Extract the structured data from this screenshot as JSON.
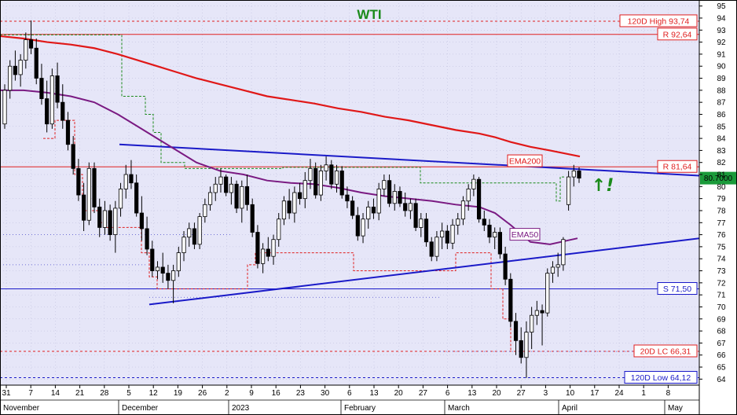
{
  "chart_data": {
    "type": "candlestick",
    "title": "WTI",
    "ylim": [
      63.5,
      95.5
    ],
    "y_ticks": [
      64,
      65,
      66,
      67,
      68,
      69,
      70,
      71,
      72,
      73,
      74,
      75,
      76,
      77,
      78,
      79,
      80,
      81,
      82,
      83,
      84,
      85,
      86,
      87,
      88,
      89,
      90,
      91,
      92,
      93,
      94,
      95
    ],
    "x_day_labels": [
      "31",
      "7",
      "14",
      "21",
      "28",
      "5",
      "12",
      "19",
      "26",
      "2",
      "9",
      "16",
      "23",
      "30",
      "6",
      "13",
      "20",
      "27",
      "6",
      "13",
      "20",
      "27",
      "3",
      "10",
      "17",
      "24",
      "1",
      "8"
    ],
    "x_month_labels": [
      "November",
      "December",
      "2023",
      "February",
      "March",
      "April",
      "May"
    ],
    "last_price": "80.7000",
    "annotation": "↑!",
    "candles": [
      {
        "o": 85.2,
        "h": 88.5,
        "l": 84.8,
        "c": 88.0
      },
      {
        "o": 88.0,
        "h": 90.5,
        "l": 87.3,
        "c": 90.0
      },
      {
        "o": 90.0,
        "h": 91.3,
        "l": 88.8,
        "c": 89.3
      },
      {
        "o": 89.3,
        "h": 91.0,
        "l": 88.3,
        "c": 90.5
      },
      {
        "o": 90.5,
        "h": 92.8,
        "l": 89.8,
        "c": 92.2
      },
      {
        "o": 92.2,
        "h": 93.8,
        "l": 91.0,
        "c": 91.5
      },
      {
        "o": 91.5,
        "h": 92.3,
        "l": 88.5,
        "c": 89.0
      },
      {
        "o": 89.0,
        "h": 90.2,
        "l": 86.8,
        "c": 87.3
      },
      {
        "o": 87.3,
        "h": 88.8,
        "l": 84.5,
        "c": 85.2
      },
      {
        "o": 85.2,
        "h": 89.8,
        "l": 84.8,
        "c": 89.2
      },
      {
        "o": 89.2,
        "h": 90.3,
        "l": 86.5,
        "c": 87.0
      },
      {
        "o": 87.0,
        "h": 88.5,
        "l": 84.8,
        "c": 85.5
      },
      {
        "o": 85.5,
        "h": 86.2,
        "l": 83.0,
        "c": 83.5
      },
      {
        "o": 83.5,
        "h": 84.2,
        "l": 81.0,
        "c": 81.5
      },
      {
        "o": 81.5,
        "h": 82.3,
        "l": 78.8,
        "c": 79.3
      },
      {
        "o": 79.3,
        "h": 80.3,
        "l": 76.3,
        "c": 77.2
      },
      {
        "o": 77.2,
        "h": 82.0,
        "l": 76.8,
        "c": 81.5
      },
      {
        "o": 81.5,
        "h": 82.0,
        "l": 77.8,
        "c": 78.3
      },
      {
        "o": 78.3,
        "h": 79.0,
        "l": 75.8,
        "c": 76.6
      },
      {
        "o": 76.6,
        "h": 78.8,
        "l": 76.0,
        "c": 78.0
      },
      {
        "o": 78.0,
        "h": 78.5,
        "l": 75.5,
        "c": 76.0
      },
      {
        "o": 76.0,
        "h": 78.8,
        "l": 74.5,
        "c": 78.2
      },
      {
        "o": 78.2,
        "h": 80.3,
        "l": 77.5,
        "c": 79.8
      },
      {
        "o": 79.8,
        "h": 81.8,
        "l": 79.0,
        "c": 81.0
      },
      {
        "o": 81.0,
        "h": 82.2,
        "l": 79.8,
        "c": 80.3
      },
      {
        "o": 80.3,
        "h": 81.0,
        "l": 77.5,
        "c": 77.8
      },
      {
        "o": 77.8,
        "h": 79.2,
        "l": 75.5,
        "c": 76.5
      },
      {
        "o": 76.5,
        "h": 77.5,
        "l": 74.3,
        "c": 74.8
      },
      {
        "o": 74.8,
        "h": 75.5,
        "l": 72.5,
        "c": 73.0
      },
      {
        "o": 73.0,
        "h": 73.8,
        "l": 72.3,
        "c": 73.3
      },
      {
        "o": 73.3,
        "h": 74.5,
        "l": 72.0,
        "c": 72.8
      },
      {
        "o": 72.8,
        "h": 73.5,
        "l": 71.5,
        "c": 72.2
      },
      {
        "o": 72.2,
        "h": 73.5,
        "l": 70.3,
        "c": 73.0
      },
      {
        "o": 73.0,
        "h": 75.0,
        "l": 72.5,
        "c": 74.5
      },
      {
        "o": 74.5,
        "h": 76.3,
        "l": 73.8,
        "c": 75.8
      },
      {
        "o": 75.8,
        "h": 77.0,
        "l": 75.0,
        "c": 76.5
      },
      {
        "o": 76.5,
        "h": 77.0,
        "l": 74.8,
        "c": 75.2
      },
      {
        "o": 75.2,
        "h": 77.8,
        "l": 74.8,
        "c": 77.5
      },
      {
        "o": 77.5,
        "h": 79.0,
        "l": 77.0,
        "c": 78.5
      },
      {
        "o": 78.5,
        "h": 80.0,
        "l": 78.0,
        "c": 79.5
      },
      {
        "o": 79.5,
        "h": 80.8,
        "l": 78.8,
        "c": 80.2
      },
      {
        "o": 80.2,
        "h": 81.5,
        "l": 79.5,
        "c": 80.8
      },
      {
        "o": 80.8,
        "h": 81.0,
        "l": 79.2,
        "c": 79.5
      },
      {
        "o": 79.5,
        "h": 80.8,
        "l": 78.5,
        "c": 80.2
      },
      {
        "o": 80.2,
        "h": 80.5,
        "l": 77.8,
        "c": 78.2
      },
      {
        "o": 78.2,
        "h": 80.5,
        "l": 77.0,
        "c": 80.0
      },
      {
        "o": 80.0,
        "h": 81.0,
        "l": 78.0,
        "c": 78.5
      },
      {
        "o": 78.5,
        "h": 79.0,
        "l": 75.8,
        "c": 76.2
      },
      {
        "o": 76.2,
        "h": 76.8,
        "l": 73.2,
        "c": 73.6
      },
      {
        "o": 73.6,
        "h": 75.3,
        "l": 72.8,
        "c": 74.8
      },
      {
        "o": 74.8,
        "h": 75.8,
        "l": 73.8,
        "c": 74.2
      },
      {
        "o": 74.2,
        "h": 76.0,
        "l": 73.5,
        "c": 75.6
      },
      {
        "o": 75.6,
        "h": 77.8,
        "l": 75.0,
        "c": 77.3
      },
      {
        "o": 77.3,
        "h": 79.2,
        "l": 76.8,
        "c": 78.8
      },
      {
        "o": 78.8,
        "h": 79.8,
        "l": 77.3,
        "c": 77.8
      },
      {
        "o": 77.8,
        "h": 80.0,
        "l": 77.0,
        "c": 79.5
      },
      {
        "o": 79.5,
        "h": 80.3,
        "l": 78.5,
        "c": 79.0
      },
      {
        "o": 79.0,
        "h": 81.2,
        "l": 78.2,
        "c": 80.5
      },
      {
        "o": 80.5,
        "h": 82.3,
        "l": 79.8,
        "c": 81.5
      },
      {
        "o": 81.5,
        "h": 82.0,
        "l": 79.0,
        "c": 79.3
      },
      {
        "o": 79.3,
        "h": 81.8,
        "l": 78.8,
        "c": 81.3
      },
      {
        "o": 81.3,
        "h": 82.5,
        "l": 80.5,
        "c": 81.8
      },
      {
        "o": 81.8,
        "h": 82.2,
        "l": 79.8,
        "c": 80.2
      },
      {
        "o": 80.2,
        "h": 81.8,
        "l": 79.5,
        "c": 81.3
      },
      {
        "o": 81.3,
        "h": 81.7,
        "l": 79.0,
        "c": 79.3
      },
      {
        "o": 79.3,
        "h": 80.0,
        "l": 78.2,
        "c": 78.8
      },
      {
        "o": 78.8,
        "h": 79.2,
        "l": 77.3,
        "c": 77.6
      },
      {
        "o": 77.6,
        "h": 78.3,
        "l": 75.5,
        "c": 75.9
      },
      {
        "o": 75.9,
        "h": 77.8,
        "l": 75.3,
        "c": 77.3
      },
      {
        "o": 77.3,
        "h": 78.8,
        "l": 76.5,
        "c": 78.3
      },
      {
        "o": 78.3,
        "h": 79.0,
        "l": 77.3,
        "c": 77.8
      },
      {
        "o": 77.8,
        "h": 80.3,
        "l": 77.2,
        "c": 79.8
      },
      {
        "o": 79.8,
        "h": 81.0,
        "l": 79.2,
        "c": 80.5
      },
      {
        "o": 80.5,
        "h": 81.0,
        "l": 78.3,
        "c": 78.6
      },
      {
        "o": 78.6,
        "h": 80.2,
        "l": 78.0,
        "c": 79.6
      },
      {
        "o": 79.6,
        "h": 80.0,
        "l": 78.3,
        "c": 78.6
      },
      {
        "o": 78.6,
        "h": 79.5,
        "l": 77.5,
        "c": 78.0
      },
      {
        "o": 78.0,
        "h": 79.0,
        "l": 77.3,
        "c": 78.6
      },
      {
        "o": 78.6,
        "h": 79.0,
        "l": 76.3,
        "c": 76.6
      },
      {
        "o": 76.6,
        "h": 77.8,
        "l": 75.8,
        "c": 77.3
      },
      {
        "o": 77.3,
        "h": 77.8,
        "l": 75.0,
        "c": 75.4
      },
      {
        "o": 75.4,
        "h": 75.8,
        "l": 73.8,
        "c": 74.2
      },
      {
        "o": 74.2,
        "h": 76.3,
        "l": 73.8,
        "c": 75.8
      },
      {
        "o": 75.8,
        "h": 77.0,
        "l": 74.8,
        "c": 76.3
      },
      {
        "o": 76.3,
        "h": 76.8,
        "l": 74.8,
        "c": 75.3
      },
      {
        "o": 75.3,
        "h": 77.3,
        "l": 74.8,
        "c": 76.8
      },
      {
        "o": 76.8,
        "h": 77.8,
        "l": 76.0,
        "c": 77.3
      },
      {
        "o": 77.3,
        "h": 79.2,
        "l": 76.8,
        "c": 78.8
      },
      {
        "o": 78.8,
        "h": 80.2,
        "l": 78.0,
        "c": 79.8
      },
      {
        "o": 79.8,
        "h": 81.0,
        "l": 79.2,
        "c": 80.6
      },
      {
        "o": 80.6,
        "h": 80.8,
        "l": 77.0,
        "c": 77.3
      },
      {
        "o": 77.3,
        "h": 78.0,
        "l": 76.3,
        "c": 76.8
      },
      {
        "o": 76.8,
        "h": 77.3,
        "l": 75.3,
        "c": 75.8
      },
      {
        "o": 75.8,
        "h": 76.6,
        "l": 74.8,
        "c": 76.2
      },
      {
        "o": 76.2,
        "h": 76.6,
        "l": 74.0,
        "c": 74.4
      },
      {
        "o": 74.4,
        "h": 75.0,
        "l": 71.8,
        "c": 72.3
      },
      {
        "o": 72.3,
        "h": 72.8,
        "l": 68.3,
        "c": 68.8
      },
      {
        "o": 68.8,
        "h": 69.5,
        "l": 66.0,
        "c": 67.2
      },
      {
        "o": 67.2,
        "h": 68.3,
        "l": 65.3,
        "c": 65.8
      },
      {
        "o": 65.8,
        "h": 68.8,
        "l": 64.1,
        "c": 67.9
      },
      {
        "o": 67.9,
        "h": 70.0,
        "l": 66.5,
        "c": 69.3
      },
      {
        "o": 69.3,
        "h": 70.5,
        "l": 68.5,
        "c": 69.7
      },
      {
        "o": 69.7,
        "h": 70.2,
        "l": 66.8,
        "c": 69.5
      },
      {
        "o": 69.5,
        "h": 73.2,
        "l": 69.2,
        "c": 72.8
      },
      {
        "o": 72.8,
        "h": 73.8,
        "l": 72.0,
        "c": 73.3
      },
      {
        "o": 73.3,
        "h": 74.5,
        "l": 72.5,
        "c": 73.5
      },
      {
        "o": 73.5,
        "h": 75.8,
        "l": 73.0,
        "c": 75.6
      },
      {
        "o": 78.5,
        "h": 81.3,
        "l": 78.0,
        "c": 80.8
      },
      {
        "o": 80.8,
        "h": 81.8,
        "l": 80.0,
        "c": 81.3
      },
      {
        "o": 81.3,
        "h": 81.6,
        "l": 80.3,
        "c": 80.7
      }
    ],
    "series": [
      {
        "name": "EMA200",
        "label": "EMA200",
        "values": [
          92.5,
          92.3,
          92.0,
          91.8,
          91.5,
          91.0,
          90.5,
          90.0,
          89.5,
          89.0,
          88.5,
          88.0,
          87.5,
          87.2,
          86.9,
          86.5,
          86.2,
          85.8,
          85.5,
          85.1,
          84.7,
          84.4,
          84.1,
          83.7,
          83.3,
          83.0,
          82.5
        ]
      },
      {
        "name": "EMA50",
        "label": "EMA50",
        "values": [
          88.0,
          88.0,
          87.8,
          87.5,
          87.0,
          86.0,
          85.0,
          84.0,
          83.0,
          82.0,
          81.3,
          81.0,
          80.5,
          80.3,
          80.2,
          79.9,
          79.5,
          79.2,
          79.0,
          78.8,
          78.5,
          78.3,
          77.8,
          76.8,
          75.4,
          75.2,
          75.7
        ]
      }
    ],
    "trendlines": [
      {
        "name": "upper-trendline",
        "points": [
          [
            "Nov 28",
            83.5
          ],
          [
            "Apr 11",
            81.0
          ]
        ]
      },
      {
        "name": "lower-trendline",
        "points": [
          [
            "Dec 5",
            70.2
          ],
          [
            "May 8",
            75.7
          ]
        ]
      }
    ],
    "levels": [
      {
        "name": "120D High",
        "value": 93.74,
        "label": "120D High 93,74",
        "style": "dashed",
        "color": "#e02020"
      },
      {
        "name": "R",
        "value": 92.64,
        "label": "R 92,64",
        "style": "solid",
        "color": "#e02020"
      },
      {
        "name": "R",
        "value": 81.64,
        "label": "R 81,64",
        "style": "solid",
        "color": "#e02020"
      },
      {
        "name": "S",
        "value": 71.5,
        "label": "S 71,50",
        "style": "solid",
        "color": "#1a1ac8"
      },
      {
        "name": "20D LC",
        "value": 66.31,
        "label": "20D LC 66,31",
        "style": "dashed",
        "color": "#e02020"
      },
      {
        "name": "120D Low",
        "value": 64.12,
        "label": "120D Low 64,12",
        "style": "dashed",
        "color": "#1a1ac8"
      }
    ],
    "colors": {
      "background": "#e6e6f8",
      "grid": "#b8b8d8",
      "candle": "#000000",
      "ema200": "#e01818",
      "ema50": "#7a1a82",
      "trendline": "#1a1ac8",
      "resistance": "#e02020",
      "support": "#1a1ac8",
      "title": "#1a8a1a",
      "arrow": "#1a8a1a",
      "last_price_bg": "#1a9a3a"
    }
  }
}
